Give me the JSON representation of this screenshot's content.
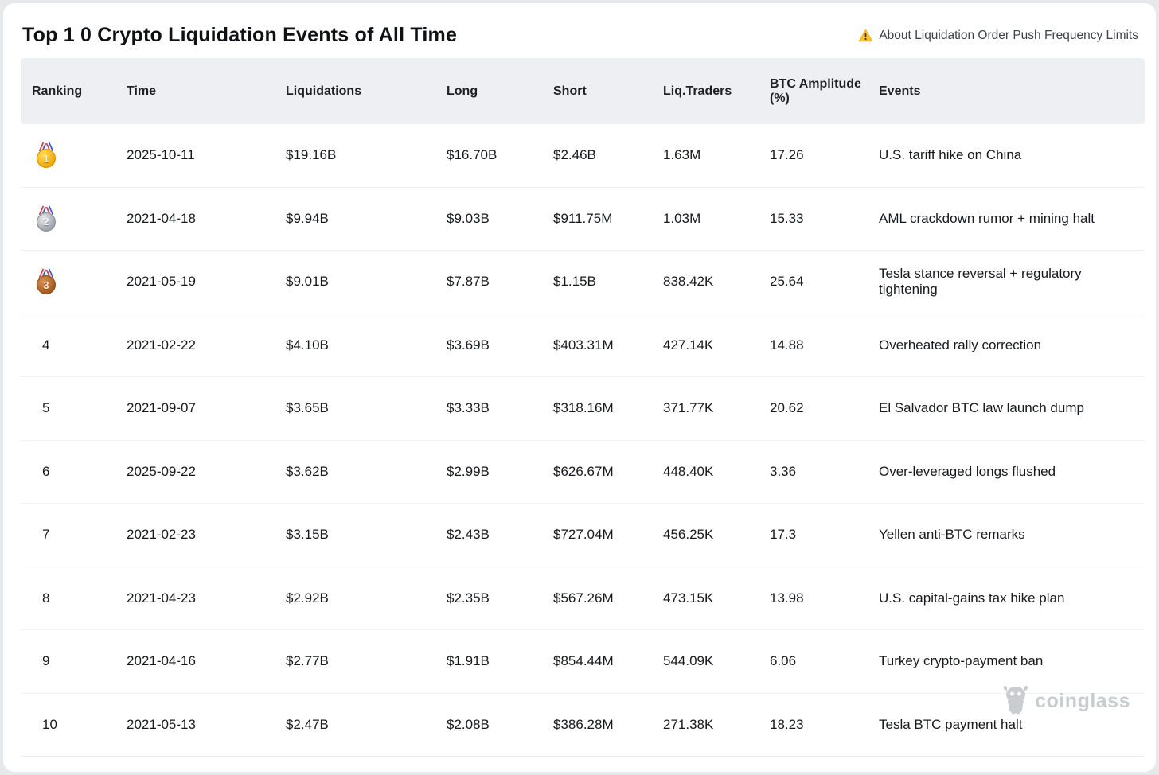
{
  "page": {
    "title": "Top 1 0 Crypto Liquidation Events of All Time",
    "notice": "About Liquidation Order Push Frequency Limits"
  },
  "colors": {
    "warning_yellow": "#f8c42c",
    "header_row_bg": "#edeff2",
    "watermark_gray": "#c9cdd1"
  },
  "watermark": {
    "brand": "coinglass",
    "icon": "coinglass-mascot-icon"
  },
  "table": {
    "columns": [
      "Ranking",
      "Time",
      "Liquidations",
      "Long",
      "Short",
      "Liq.Traders",
      "BTC Amplitude (%)",
      "Events"
    ],
    "rows": [
      {
        "ranking": "1",
        "medal": "gold",
        "time": "2025-10-11",
        "liquidations": "$19.16B",
        "long": "$16.70B",
        "short": "$2.46B",
        "liq_traders": "1.63M",
        "btc_amplitude": "17.26",
        "events": "U.S. tariff hike on China"
      },
      {
        "ranking": "2",
        "medal": "silver",
        "time": "2021-04-18",
        "liquidations": "$9.94B",
        "long": "$9.03B",
        "short": "$911.75M",
        "liq_traders": "1.03M",
        "btc_amplitude": "15.33",
        "events": "AML crackdown rumor + mining halt"
      },
      {
        "ranking": "3",
        "medal": "bronze",
        "time": "2021-05-19",
        "liquidations": "$9.01B",
        "long": "$7.87B",
        "short": "$1.15B",
        "liq_traders": "838.42K",
        "btc_amplitude": "25.64",
        "events": "Tesla stance reversal + regulatory tightening"
      },
      {
        "ranking": "4",
        "medal": null,
        "time": "2021-02-22",
        "liquidations": "$4.10B",
        "long": "$3.69B",
        "short": "$403.31M",
        "liq_traders": "427.14K",
        "btc_amplitude": "14.88",
        "events": "Overheated rally correction"
      },
      {
        "ranking": "5",
        "medal": null,
        "time": "2021-09-07",
        "liquidations": "$3.65B",
        "long": "$3.33B",
        "short": "$318.16M",
        "liq_traders": "371.77K",
        "btc_amplitude": "20.62",
        "events": "El Salvador BTC law launch dump"
      },
      {
        "ranking": "6",
        "medal": null,
        "time": "2025-09-22",
        "liquidations": "$3.62B",
        "long": "$2.99B",
        "short": "$626.67M",
        "liq_traders": "448.40K",
        "btc_amplitude": "3.36",
        "events": "Over-leveraged longs flushed"
      },
      {
        "ranking": "7",
        "medal": null,
        "time": "2021-02-23",
        "liquidations": "$3.15B",
        "long": "$2.43B",
        "short": "$727.04M",
        "liq_traders": "456.25K",
        "btc_amplitude": "17.3",
        "events": "Yellen anti-BTC remarks"
      },
      {
        "ranking": "8",
        "medal": null,
        "time": "2021-04-23",
        "liquidations": "$2.92B",
        "long": "$2.35B",
        "short": "$567.26M",
        "liq_traders": "473.15K",
        "btc_amplitude": "13.98",
        "events": "U.S. capital-gains tax hike plan"
      },
      {
        "ranking": "9",
        "medal": null,
        "time": "2021-04-16",
        "liquidations": "$2.77B",
        "long": "$1.91B",
        "short": "$854.44M",
        "liq_traders": "544.09K",
        "btc_amplitude": "6.06",
        "events": "Turkey crypto-payment ban"
      },
      {
        "ranking": "10",
        "medal": null,
        "time": "2021-05-13",
        "liquidations": "$2.47B",
        "long": "$2.08B",
        "short": "$386.28M",
        "liq_traders": "271.38K",
        "btc_amplitude": "18.23",
        "events": "Tesla BTC payment halt"
      }
    ]
  }
}
